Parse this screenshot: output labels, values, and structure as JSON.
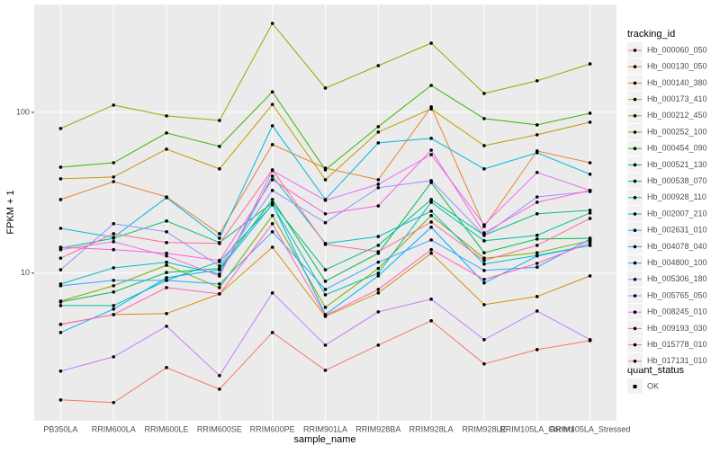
{
  "chart_data": {
    "type": "line",
    "x_label": "sample_name",
    "y_label": "FPKM + 1",
    "log_y": true,
    "grid": true,
    "categories": [
      "PB350LA",
      "RRIM600LA",
      "RRIM600LE",
      "RRIM600SE",
      "RRIM600PE",
      "RRIM901LA",
      "RRIM928BA",
      "RRIM928LA",
      "RRIM928LE",
      "RRIM105LA_Control",
      "RRIM105LA_Stressed"
    ],
    "ylim": [
      1.21,
      468
    ],
    "yticks": [
      10,
      100
    ],
    "legend_title": "tracking_id",
    "series": [
      {
        "name": "Hb_000060_050",
        "color": "#F8766D",
        "values": [
          1.63,
          1.57,
          2.59,
          1.9,
          4.28,
          2.49,
          3.57,
          5.06,
          2.73,
          3.35,
          3.81
        ]
      },
      {
        "name": "Hb_000130_050",
        "color": "#EA8331",
        "values": [
          28.7,
          37.1,
          29.8,
          17.6,
          63,
          45,
          38.1,
          108,
          19.5,
          57.5,
          48.6
        ]
      },
      {
        "name": "Hb_000140_380",
        "color": "#D89000",
        "values": [
          4.81,
          5.53,
          5.61,
          7.44,
          14.5,
          5.39,
          7.54,
          13.3,
          6.37,
          7.16,
          9.62
        ]
      },
      {
        "name": "Hb_000173_410",
        "color": "#C09B00",
        "values": [
          38.6,
          39.6,
          59,
          44.5,
          112,
          38.1,
          75.4,
          105,
          62.1,
          72.5,
          86.8
        ]
      },
      {
        "name": "Hb_000212_450",
        "color": "#A3A500",
        "values": [
          79.3,
          110.9,
          95,
          89,
          357,
          141.5,
          195,
          269,
          131,
          157,
          200
        ]
      },
      {
        "name": "Hb_000252_100",
        "color": "#7CAE00",
        "values": [
          6.71,
          8.35,
          11.2,
          8.14,
          22.8,
          6.13,
          10.7,
          22.8,
          12.4,
          13.4,
          15.9
        ]
      },
      {
        "name": "Hb_000454_090",
        "color": "#39B600",
        "values": [
          45.6,
          48.6,
          74.4,
          61.4,
          134,
          43.9,
          81.4,
          147,
          91.4,
          83.5,
          98.7
        ]
      },
      {
        "name": "Hb_000521_130",
        "color": "#00BB4E",
        "values": [
          6.62,
          7.64,
          10.1,
          10.7,
          28.7,
          8.91,
          13.3,
          36.6,
          13.4,
          16.3,
          16.5
        ]
      },
      {
        "name": "Hb_000538_070",
        "color": "#00BF7D",
        "values": [
          14.3,
          16.5,
          21.1,
          15.5,
          27.3,
          10.5,
          14.9,
          28.7,
          17.2,
          23.4,
          24.6
        ]
      },
      {
        "name": "Hb_000928_110",
        "color": "#00C1A3",
        "values": [
          6.29,
          6.29,
          9.02,
          11.8,
          26.6,
          7.34,
          10,
          27.6,
          15.9,
          17.2,
          23.7
        ]
      },
      {
        "name": "Hb_002007_210",
        "color": "#00BFC4",
        "values": [
          8.57,
          10.8,
          11.7,
          9.87,
          40.1,
          15.3,
          16.9,
          24.3,
          11.4,
          12.9,
          14.9
        ]
      },
      {
        "name": "Hb_002631_010",
        "color": "#00BAE0",
        "values": [
          19,
          16.7,
          29.5,
          16.5,
          82.5,
          28.7,
          64.6,
          68.9,
          44.5,
          56.1,
          41.2
        ]
      },
      {
        "name": "Hb_004078_040",
        "color": "#00B0F6",
        "values": [
          4.28,
          5.98,
          9.37,
          10.5,
          26.9,
          5.53,
          9.62,
          19.3,
          8.69,
          12.8,
          14.9
        ]
      },
      {
        "name": "Hb_004800_100",
        "color": "#35A2FF",
        "values": [
          8.35,
          9.02,
          9.02,
          8.57,
          18.1,
          7.93,
          11.7,
          16.1,
          10.4,
          10.9,
          16.3
        ]
      },
      {
        "name": "Hb_005306_180",
        "color": "#9590FF",
        "values": [
          10.5,
          20.3,
          18.1,
          11.1,
          32.7,
          20.6,
          34,
          37.6,
          17.2,
          29.8,
          32.2
        ]
      },
      {
        "name": "Hb_005765_050",
        "color": "#C77CFF",
        "values": [
          2.46,
          3.02,
          4.68,
          2.31,
          7.54,
          3.57,
          5.75,
          6.89,
          3.86,
          5.82,
          3.86
        ]
      },
      {
        "name": "Hb_008245_010",
        "color": "#E76BF3",
        "values": [
          14,
          15.7,
          12.8,
          9.6,
          43.4,
          28.4,
          35.7,
          54.6,
          20,
          42.3,
          32.7
        ]
      },
      {
        "name": "Hb_009193_030",
        "color": "#FA62DB",
        "values": [
          14.5,
          14,
          13.3,
          12,
          38.1,
          23.4,
          26.2,
          58.2,
          17.8,
          27.6,
          32.7
        ]
      },
      {
        "name": "Hb_015778_010",
        "color": "#FF62BC",
        "values": [
          4.8,
          5.53,
          8.14,
          7.44,
          20.3,
          5.46,
          7.93,
          14,
          9.14,
          11.5,
          15.5
        ]
      },
      {
        "name": "Hb_017131_010",
        "color": "#FF6C91",
        "values": [
          12.4,
          17.6,
          15.5,
          15.3,
          43.9,
          15.1,
          13.6,
          20.8,
          12,
          14.9,
          21.9
        ]
      }
    ],
    "legend2_title": "quant_status",
    "legend2_labels": [
      "OK"
    ]
  }
}
